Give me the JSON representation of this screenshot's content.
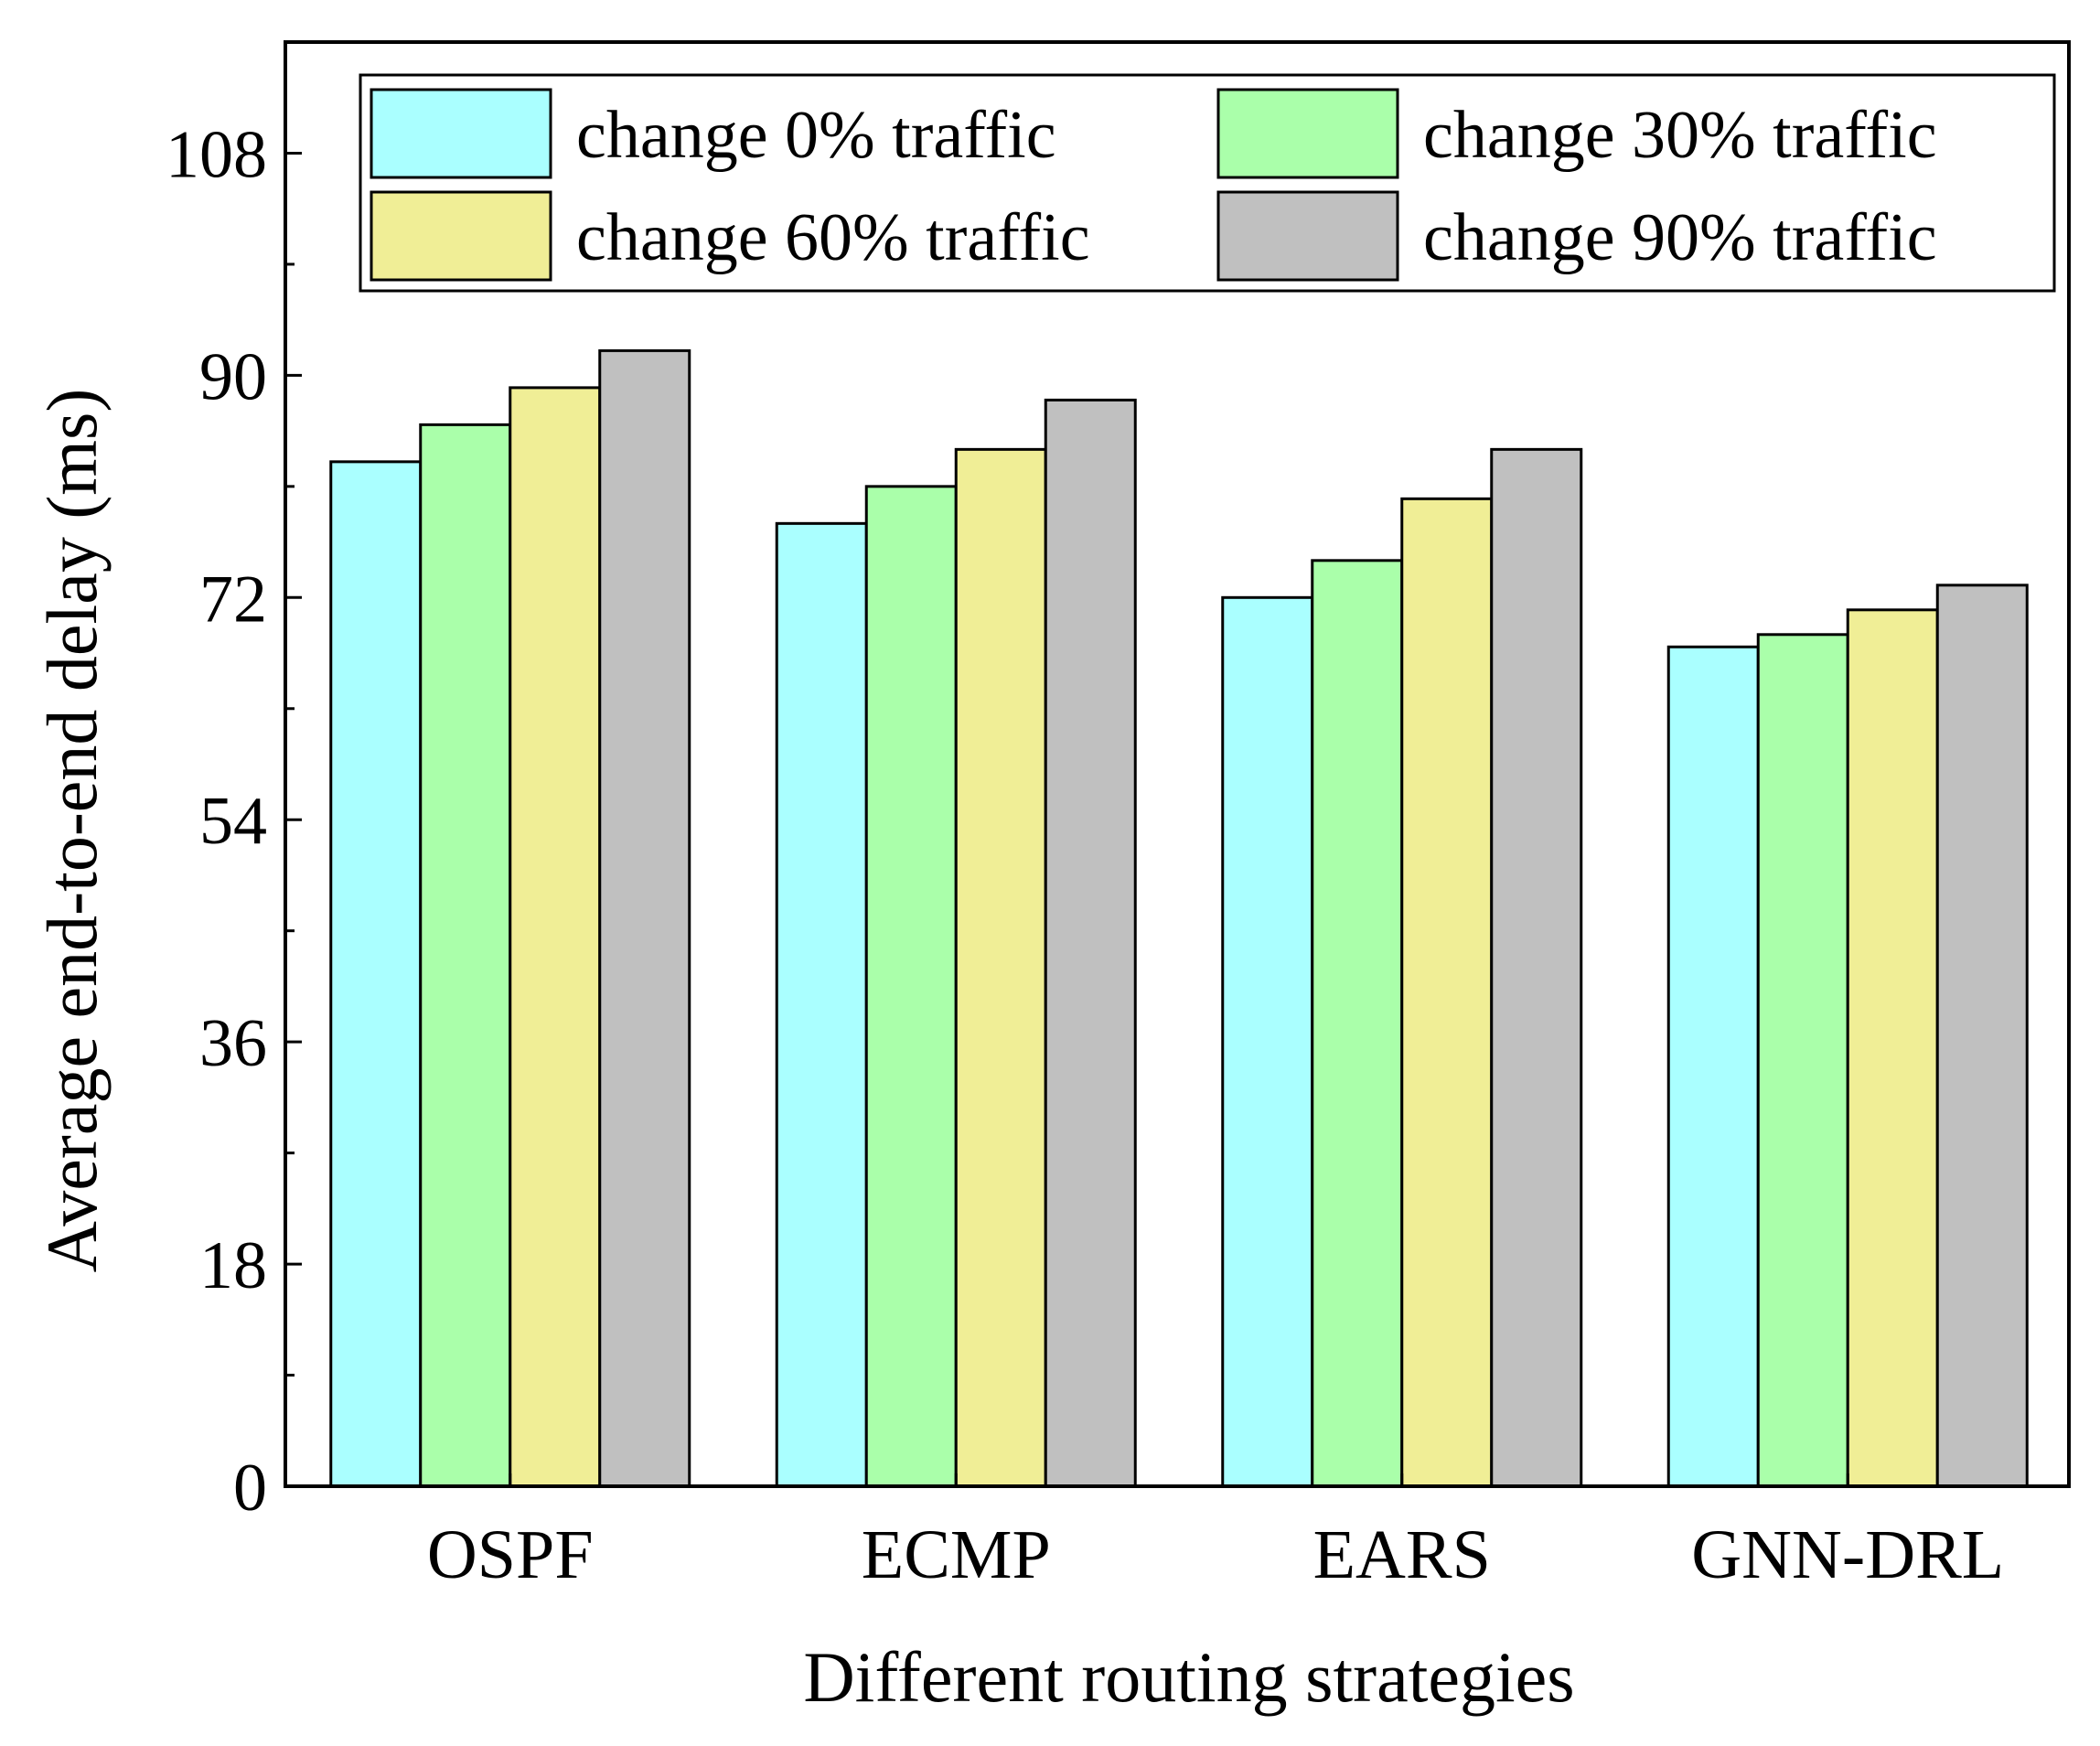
{
  "chart_data": {
    "type": "bar",
    "title": "",
    "xlabel": "Different routing strategies",
    "ylabel": "Average end-to-end delay (ms)",
    "categories": [
      "OSPF",
      "ECMP",
      "EARS",
      "GNN-DRL"
    ],
    "ylim": [
      0,
      117
    ],
    "yticks": [
      0,
      18,
      36,
      54,
      72,
      90,
      108
    ],
    "y_minor_tick_step": 9,
    "grid": false,
    "legend_position": "top-right",
    "series": [
      {
        "name": "change 0% traffic",
        "color": "#aaffff",
        "values": [
          83,
          78,
          72,
          68
        ]
      },
      {
        "name": "change 30% traffic",
        "color": "#aaffaa",
        "values": [
          86,
          81,
          75,
          69
        ]
      },
      {
        "name": "change 60% traffic",
        "color": "#f0ee96",
        "values": [
          89,
          84,
          80,
          71
        ]
      },
      {
        "name": "change 90% traffic",
        "color": "#c0c0c0",
        "values": [
          92,
          88,
          84,
          73
        ]
      }
    ]
  }
}
